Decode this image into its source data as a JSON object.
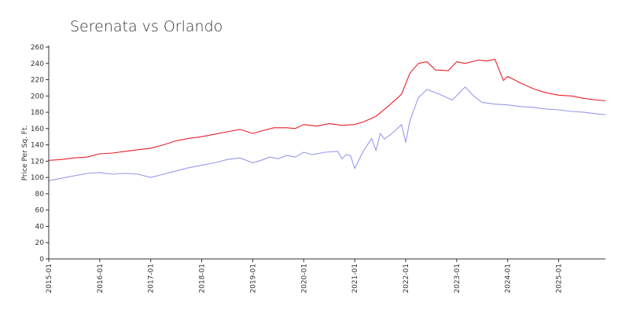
{
  "chart_data": {
    "type": "line",
    "title": "Serenata vs Orlando",
    "xlabel": "",
    "ylabel": "Price Per Sq. Ft.",
    "ylim": [
      0,
      260
    ],
    "yticks": [
      0,
      20,
      40,
      60,
      80,
      100,
      120,
      140,
      160,
      180,
      200,
      220,
      240,
      260
    ],
    "xlim": [
      "2015-01",
      "2025-12"
    ],
    "xticks": [
      "2015-01",
      "2016-01",
      "2017-01",
      "2018-01",
      "2019-01",
      "2020-01",
      "2021-01",
      "2022-01",
      "2023-01",
      "2024-01",
      "2025-01"
    ],
    "grid": false,
    "legend": "none",
    "series": [
      {
        "color": "#e8202a",
        "x": [
          "2015-01",
          "2015-04",
          "2015-07",
          "2015-10",
          "2016-01",
          "2016-04",
          "2016-07",
          "2016-10",
          "2017-01",
          "2017-04",
          "2017-07",
          "2017-10",
          "2018-01",
          "2018-04",
          "2018-07",
          "2018-10",
          "2019-01",
          "2019-03",
          "2019-06",
          "2019-09",
          "2019-11",
          "2020-01",
          "2020-04",
          "2020-07",
          "2020-10",
          "2021-01",
          "2021-03",
          "2021-06",
          "2021-09",
          "2021-12",
          "2022-02",
          "2022-04",
          "2022-06",
          "2022-08",
          "2022-11",
          "2023-01",
          "2023-03",
          "2023-06",
          "2023-08",
          "2023-10",
          "2023-12",
          "2024-01",
          "2024-04",
          "2024-07",
          "2024-10",
          "2025-01",
          "2025-04",
          "2025-07",
          "2025-10",
          "2025-12"
        ],
        "y": [
          121,
          122,
          124,
          125,
          129,
          130,
          132,
          134,
          136,
          140,
          145,
          148,
          150,
          153,
          156,
          159,
          154,
          157,
          161,
          161,
          160,
          165,
          163,
          166,
          164,
          165,
          168,
          175,
          188,
          202,
          228,
          240,
          242,
          232,
          231,
          242,
          240,
          244,
          243,
          245,
          219,
          224,
          216,
          209,
          204,
          201,
          200,
          197,
          195,
          194
        ]
      },
      {
        "color": "#9999ee",
        "x": [
          "2015-01",
          "2015-04",
          "2015-07",
          "2015-10",
          "2016-01",
          "2016-04",
          "2016-07",
          "2016-10",
          "2017-01",
          "2017-04",
          "2017-07",
          "2017-10",
          "2018-01",
          "2018-04",
          "2018-07",
          "2018-10",
          "2019-01",
          "2019-03",
          "2019-05",
          "2019-07",
          "2019-09",
          "2019-11",
          "2020-01",
          "2020-03",
          "2020-06",
          "2020-09",
          "2020-10",
          "2020-11",
          "2020-12",
          "2021-01",
          "2021-03",
          "2021-05",
          "2021-06",
          "2021-07",
          "2021-08",
          "2021-10",
          "2021-12",
          "2022-01",
          "2022-02",
          "2022-04",
          "2022-06",
          "2022-09",
          "2022-12",
          "2023-03",
          "2023-05",
          "2023-07",
          "2023-10",
          "2024-01",
          "2024-04",
          "2024-07",
          "2024-10",
          "2025-01",
          "2025-04",
          "2025-07",
          "2025-10",
          "2025-12"
        ],
        "y": [
          96,
          99,
          102,
          105,
          106,
          104,
          105,
          104,
          100,
          104,
          108,
          112,
          115,
          118,
          122,
          124,
          118,
          121,
          125,
          123,
          127,
          125,
          131,
          128,
          131,
          132,
          123,
          128,
          127,
          111,
          132,
          148,
          133,
          154,
          147,
          155,
          165,
          143,
          170,
          198,
          208,
          202,
          195,
          211,
          200,
          192,
          190,
          189,
          187,
          186,
          184,
          183,
          181,
          180,
          178,
          177
        ]
      }
    ]
  }
}
